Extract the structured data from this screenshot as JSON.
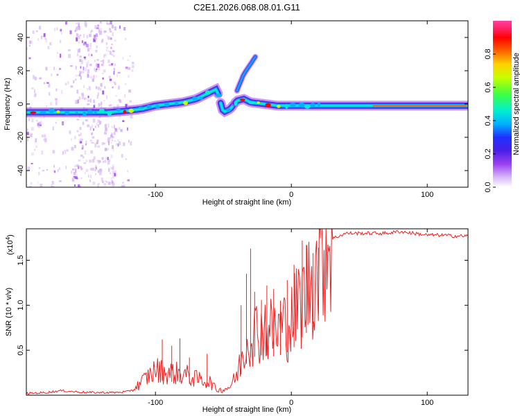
{
  "title": "C2E1.2026.068.08.01.G11",
  "chart_data": [
    {
      "type": "heatmap",
      "name": "spectrogram",
      "xlabel": "Height of straight line (km)",
      "ylabel": "Frequency (Hz)",
      "xlim": [
        -195,
        130
      ],
      "ylim": [
        -50,
        50
      ],
      "xticks": [
        -100,
        0,
        100
      ],
      "yticks": [
        -40,
        -20,
        0,
        20,
        40
      ],
      "colorbar": {
        "label": "Normalized spectral amplitude",
        "range": [
          0,
          1
        ],
        "ticks": [
          0.0,
          0.2,
          0.4,
          0.6,
          0.8
        ],
        "colors": [
          "#ffffff",
          "#d8b8f8",
          "#9a40f0",
          "#4a1ee8",
          "#2030ff",
          "#00b0ff",
          "#00f0d0",
          "#40ff40",
          "#c8ff00",
          "#ffd000",
          "#ff6000",
          "#ff0000",
          "#ff2060",
          "#ff40a0"
        ]
      },
      "track": {
        "x": [
          -195,
          -180,
          -165,
          -150,
          -135,
          -120,
          -110,
          -100,
          -90,
          -80,
          -70,
          -60,
          -55,
          -50,
          -45,
          -40,
          -35,
          -30,
          -20,
          -10,
          0,
          10,
          20,
          40,
          60,
          80,
          100,
          120,
          130
        ],
        "freq": [
          -5,
          -5,
          -5,
          -5,
          -5,
          -4,
          -3,
          -1,
          0,
          1,
          3,
          7,
          9,
          -5,
          -3,
          2,
          3,
          1,
          0,
          -1,
          -1,
          -1,
          -1,
          -1,
          -1,
          -1,
          -1,
          -1,
          -1
        ]
      },
      "branch": {
        "x": [
          -40,
          -35,
          -30,
          -26
        ],
        "freq": [
          8,
          18,
          24,
          29
        ]
      }
    },
    {
      "type": "line",
      "name": "snr",
      "xlabel": "Height of straight line (km)",
      "ylabel": "SNR (10 * v/v)",
      "multiplier_label": "(x10",
      "multiplier_exp": "4",
      "multiplier_close": ")",
      "xlim": [
        -195,
        130
      ],
      "ylim": [
        0,
        1.85
      ],
      "xticks": [
        -100,
        0,
        100
      ],
      "yticks": [
        0.5,
        1.0,
        1.5
      ],
      "ytick_labels": [
        "0.5",
        "1.0",
        "1.5"
      ],
      "color": "#ee2222",
      "x": [
        -195,
        -180,
        -170,
        -160,
        -150,
        -140,
        -130,
        -120,
        -115,
        -110,
        -100,
        -90,
        -80,
        -70,
        -60,
        -55,
        -50,
        -45,
        -40,
        -35,
        -30,
        -25,
        -20,
        -15,
        -10,
        -5,
        0,
        5,
        10,
        15,
        20,
        25,
        30,
        40,
        50,
        60,
        70,
        80,
        90,
        100,
        110,
        120,
        130
      ],
      "y": [
        0.02,
        0.03,
        0.05,
        0.04,
        0.03,
        0.03,
        0.03,
        0.04,
        0.08,
        0.15,
        0.28,
        0.25,
        0.24,
        0.18,
        0.15,
        0.06,
        0.06,
        0.1,
        0.22,
        0.5,
        0.7,
        0.72,
        0.75,
        0.72,
        0.72,
        0.78,
        0.82,
        1.0,
        1.12,
        1.28,
        1.5,
        1.68,
        1.74,
        1.8,
        1.8,
        1.8,
        1.8,
        1.82,
        1.8,
        1.78,
        1.78,
        1.77,
        1.77
      ],
      "spikes": [
        {
          "x": -95,
          "y": 0.62
        },
        {
          "x": -88,
          "y": 0.55
        },
        {
          "x": -82,
          "y": 0.63
        },
        {
          "x": -75,
          "y": 0.42
        },
        {
          "x": -62,
          "y": 0.46
        },
        {
          "x": -37,
          "y": 1.0
        },
        {
          "x": -33,
          "y": 1.35
        },
        {
          "x": -30,
          "y": 1.63
        },
        {
          "x": -27,
          "y": 1.15
        },
        {
          "x": -22,
          "y": 1.06
        },
        {
          "x": -18,
          "y": 1.22
        },
        {
          "x": -13,
          "y": 1.18
        },
        {
          "x": -8,
          "y": 1.05
        },
        {
          "x": -3,
          "y": 1.28
        },
        {
          "x": 2,
          "y": 1.45
        },
        {
          "x": 8,
          "y": 1.72
        },
        {
          "x": 11,
          "y": 1.67
        },
        {
          "x": 16,
          "y": 1.58
        },
        {
          "x": 20,
          "y": 1.64
        }
      ]
    }
  ]
}
